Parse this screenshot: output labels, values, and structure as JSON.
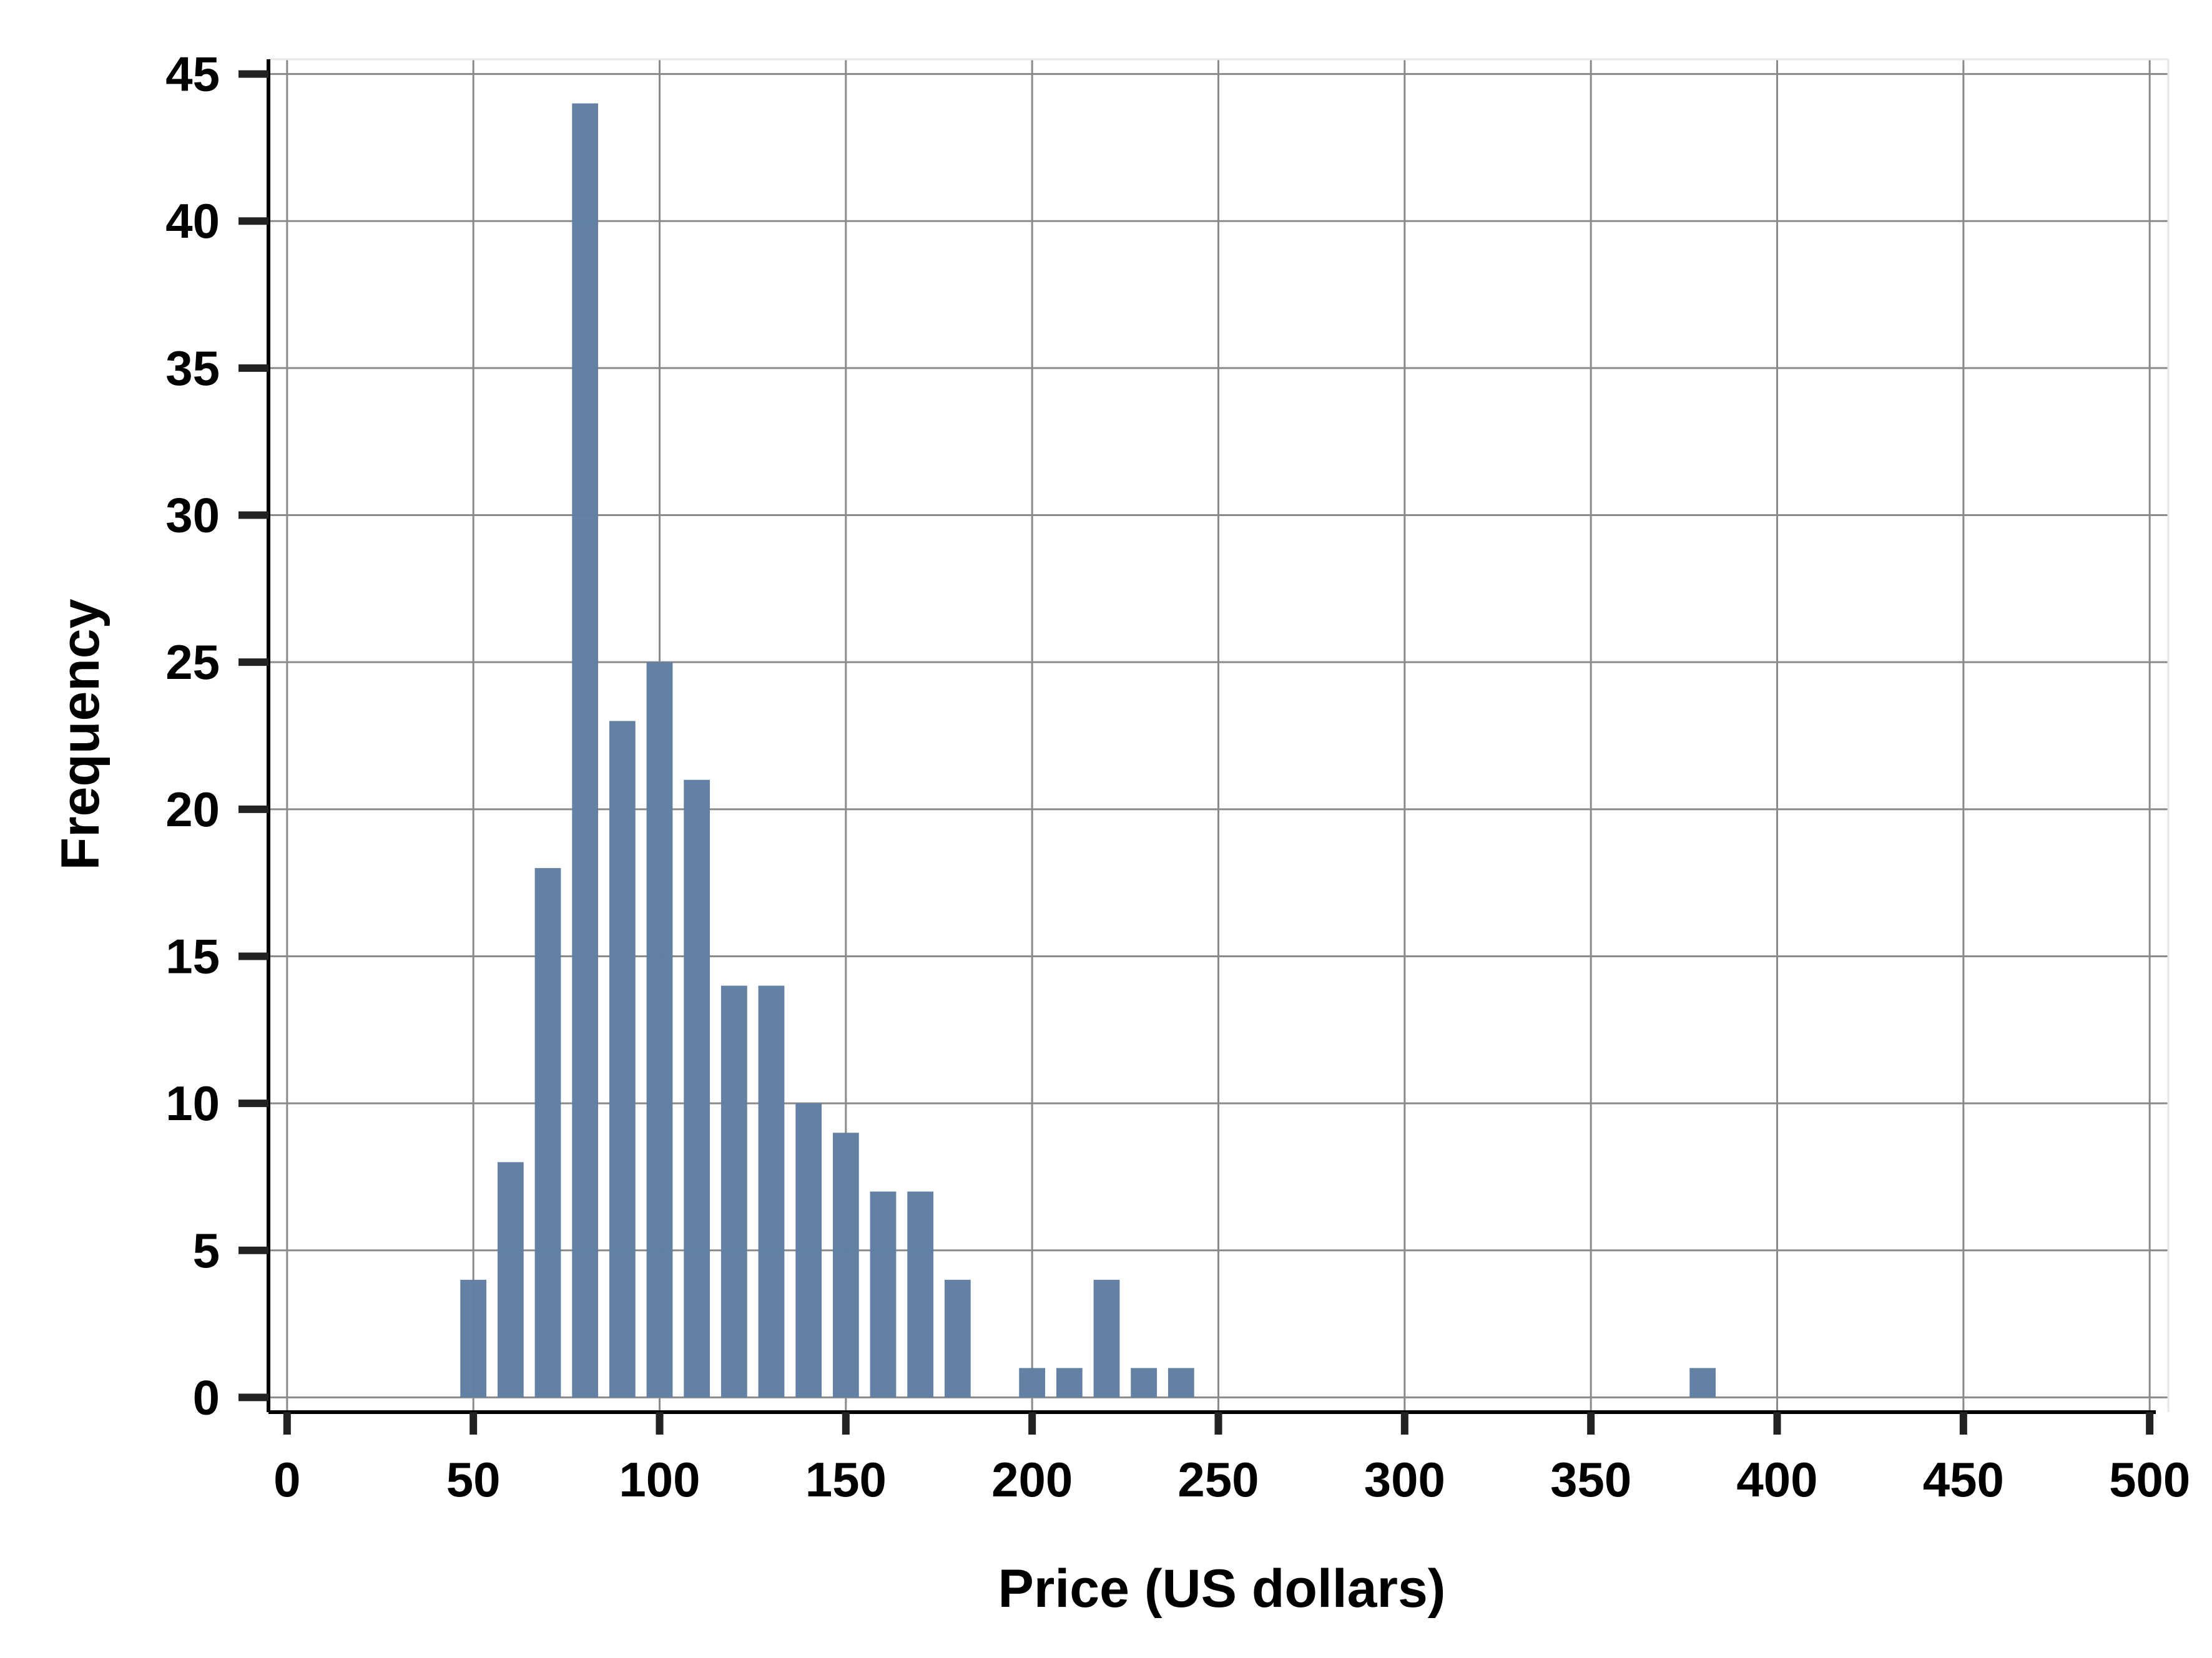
{
  "chart_data": {
    "type": "bar",
    "title": "",
    "xlabel": "Price (US dollars)",
    "ylabel": "Frequency",
    "xlim": [
      -5,
      505
    ],
    "ylim": [
      -0.5,
      45.5
    ],
    "grid": true,
    "bar_color": "#5f7ea3",
    "bin_width": 10,
    "bins": [
      {
        "x": 50,
        "value": 4
      },
      {
        "x": 60,
        "value": 8
      },
      {
        "x": 70,
        "value": 18
      },
      {
        "x": 80,
        "value": 44
      },
      {
        "x": 90,
        "value": 23
      },
      {
        "x": 100,
        "value": 25
      },
      {
        "x": 110,
        "value": 21
      },
      {
        "x": 120,
        "value": 14
      },
      {
        "x": 130,
        "value": 14
      },
      {
        "x": 140,
        "value": 10
      },
      {
        "x": 150,
        "value": 9
      },
      {
        "x": 160,
        "value": 7
      },
      {
        "x": 170,
        "value": 7
      },
      {
        "x": 180,
        "value": 4
      },
      {
        "x": 200,
        "value": 1
      },
      {
        "x": 210,
        "value": 1
      },
      {
        "x": 220,
        "value": 4
      },
      {
        "x": 230,
        "value": 1
      },
      {
        "x": 240,
        "value": 1
      },
      {
        "x": 380,
        "value": 1
      }
    ],
    "x_ticks": [
      0,
      50,
      100,
      150,
      200,
      250,
      300,
      350,
      400,
      450,
      500
    ],
    "y_ticks": [
      0,
      5,
      10,
      15,
      20,
      25,
      30,
      35,
      40,
      45
    ]
  }
}
